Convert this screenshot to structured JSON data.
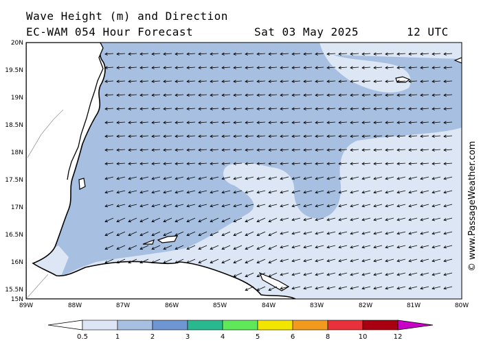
{
  "header": {
    "line1": "Wave Height (m) and Direction",
    "model": "EC-WAM 054 Hour Forecast",
    "date": "Sat 03 May 2025",
    "time": "12 UTC"
  },
  "credit": "© www.PassageWeather.com",
  "map": {
    "lat_labels": [
      "20N",
      "19.5N",
      "19N",
      "18.5N",
      "18N",
      "17.5N",
      "17N",
      "16.5N",
      "16N",
      "15.5N",
      "15N"
    ],
    "lon_labels": [
      "89W",
      "88W",
      "87W",
      "86W",
      "85W",
      "84W",
      "83W",
      "82W",
      "81W",
      "80W"
    ],
    "arrow_direction": "toward west",
    "colors": {
      "band_05_1": "#dce6f4",
      "band_1_2": "#a7c0e2",
      "land": "#ffffff",
      "coast": "#000000"
    }
  },
  "scale": {
    "labels": [
      "0.5",
      "1",
      "2",
      "3",
      "4",
      "5",
      "6",
      "8",
      "10",
      "12"
    ],
    "colors": [
      "#ffffff",
      "#dce6f4",
      "#a7c0e2",
      "#6e96d2",
      "#2ab88f",
      "#5ee85a",
      "#f2e600",
      "#f29a1e",
      "#e8313a",
      "#a80010",
      "#c800c8"
    ]
  }
}
